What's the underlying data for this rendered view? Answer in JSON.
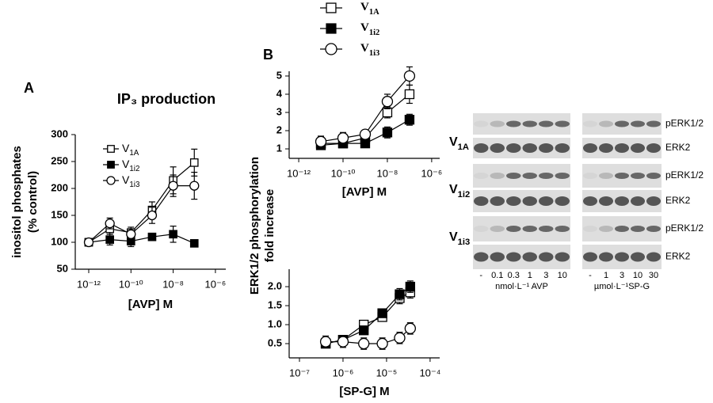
{
  "figure": {
    "panel_labels": [
      "A",
      "B"
    ],
    "b_ylabel": [
      "ERK1/2 phosphorylation",
      "fold increase"
    ]
  },
  "chart_data": [
    {
      "type": "line",
      "title": "IP₃ production",
      "xlabel": "[AVP] M",
      "ylabel": [
        "inositol phosphates",
        "(% control)"
      ],
      "xscale": "log",
      "legend": "upper-left",
      "x": [
        1e-12,
        1e-11,
        1e-10,
        1e-09,
        1e-08,
        1e-07
      ],
      "xlim": [
        2.3e-13,
        3.1e-06
      ],
      "xticks": [
        {
          "value": 1e-12,
          "label": "10⁻¹²"
        },
        {
          "value": 1e-10,
          "label": "10⁻¹⁰"
        },
        {
          "value": 1e-08,
          "label": "10⁻⁸"
        },
        {
          "value": 1e-06,
          "label": "10⁻⁶"
        }
      ],
      "ylim": [
        50,
        300
      ],
      "yticks": [
        50,
        100,
        150,
        200,
        250,
        300
      ],
      "series": [
        {
          "name": "V1A",
          "marker": "open-square",
          "color": "#000000",
          "values": [
            100,
            125,
            118,
            160,
            215,
            248
          ],
          "errors": [
            5,
            10,
            10,
            15,
            25,
            25
          ]
        },
        {
          "name": "V1i2",
          "marker": "filled-square",
          "color": "#000000",
          "values": [
            100,
            105,
            102,
            110,
            115,
            98
          ],
          "errors": [
            5,
            10,
            10,
            5,
            15,
            3
          ]
        },
        {
          "name": "V1i3",
          "marker": "open-circle",
          "color": "#000000",
          "values": [
            100,
            135,
            115,
            150,
            205,
            205
          ],
          "errors": [
            5,
            10,
            10,
            15,
            20,
            25
          ]
        }
      ]
    },
    {
      "type": "line",
      "xlabel": "[AVP] M",
      "xscale": "log",
      "legend": "above",
      "x": [
        1e-11,
        1e-10,
        1e-09,
        1e-08,
        1e-07
      ],
      "xlim": [
        3.7e-13,
        2.3e-06
      ],
      "xticks": [
        {
          "value": 1e-12,
          "label": "10⁻¹²"
        },
        {
          "value": 1e-10,
          "label": "10⁻¹⁰"
        },
        {
          "value": 1e-08,
          "label": "10⁻⁸"
        },
        {
          "value": 1e-06,
          "label": "10⁻⁶"
        }
      ],
      "ylim": [
        0.48,
        5.26
      ],
      "yticks": [
        1,
        2,
        3,
        4,
        5
      ],
      "series": [
        {
          "name": "V1A",
          "marker": "open-square",
          "color": "#000000",
          "values": [
            1.3,
            1.3,
            1.6,
            3.0,
            4.0
          ],
          "errors": [
            0.2,
            0.2,
            0.2,
            0.3,
            0.5
          ]
        },
        {
          "name": "V1i2",
          "marker": "filled-square",
          "color": "#000000",
          "values": [
            1.2,
            1.3,
            1.3,
            1.9,
            2.6
          ],
          "errors": [
            0.2,
            0.2,
            0.1,
            0.3,
            0.3
          ]
        },
        {
          "name": "V1i3",
          "marker": "open-circle",
          "color": "#000000",
          "values": [
            1.4,
            1.6,
            1.8,
            3.6,
            5.0
          ],
          "errors": [
            0.3,
            0.3,
            0.2,
            0.4,
            0.5
          ]
        }
      ]
    },
    {
      "type": "line",
      "xlabel": "[SP-G] M",
      "xscale": "log",
      "x": [
        4e-07,
        1e-06,
        3e-06,
        8e-06,
        2e-05,
        3.5e-05
      ],
      "xlim": [
        5.8e-08,
        0.000166
      ],
      "xticks": [
        {
          "value": 1e-07,
          "label": "10⁻⁷"
        },
        {
          "value": 1e-06,
          "label": "10⁻⁶"
        },
        {
          "value": 1e-05,
          "label": "10⁻⁵"
        },
        {
          "value": 0.0001,
          "label": "10⁻⁴"
        }
      ],
      "ylim": [
        0.125,
        2.46
      ],
      "yticks": [
        0.5,
        {
          "value": 1,
          "label": "1.0"
        },
        1.5,
        {
          "value": 2,
          "label": "2.0"
        }
      ],
      "series": [
        {
          "name": "V1A",
          "marker": "open-square",
          "color": "#000000",
          "values": [
            0.5,
            0.6,
            1.0,
            1.2,
            1.7,
            1.85
          ],
          "errors": [
            0.1,
            0.1,
            0.1,
            0.1,
            0.15,
            0.15
          ]
        },
        {
          "name": "V1i2",
          "marker": "filled-square",
          "color": "#000000",
          "values": [
            0.5,
            0.6,
            0.85,
            1.3,
            1.8,
            2.0
          ],
          "errors": [
            0.1,
            0.1,
            0.1,
            0.1,
            0.15,
            0.15
          ]
        },
        {
          "name": "V1i3",
          "marker": "open-circle",
          "color": "#000000",
          "values": [
            0.55,
            0.55,
            0.5,
            0.5,
            0.65,
            0.9
          ],
          "errors": [
            0.15,
            0.15,
            0.15,
            0.15,
            0.15,
            0.15
          ]
        }
      ]
    }
  ],
  "blots": {
    "rows": [
      "V1A",
      "V1i2",
      "V1i3"
    ],
    "bands": [
      "pERK1/2",
      "ERK2",
      "pERK1/2",
      "ERK2",
      "pERK1/2",
      "ERK2"
    ],
    "left_lanes": [
      "-",
      "0.1",
      "0.3",
      "1",
      "3",
      "10"
    ],
    "left_unit": "nmol·L⁻¹ AVP",
    "right_lanes": [
      "-",
      "1",
      "3",
      "10",
      "30"
    ],
    "right_unit": "µmol·L⁻¹SP-G"
  }
}
